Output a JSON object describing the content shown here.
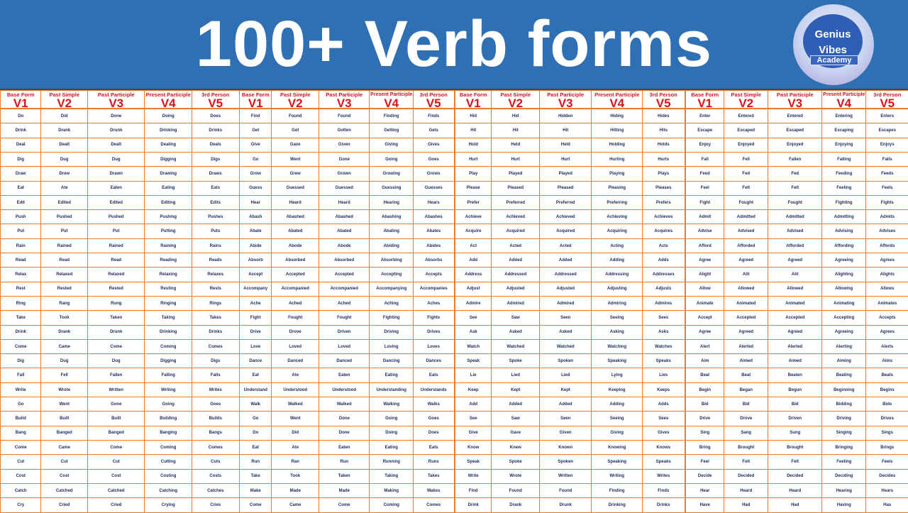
{
  "title": "100+ Verb forms",
  "logo": {
    "line1": "Genius",
    "line2": "Vibes",
    "line3": "Academy"
  },
  "colors": {
    "banner": "#2f6fb3",
    "border": "#ee7d2a",
    "header_text": "#d4161c",
    "cell_text": "#1b2a5c"
  },
  "headers": [
    {
      "label": "Base Form",
      "code": "V1"
    },
    {
      "label": "Past Simple",
      "code": "V2"
    },
    {
      "label": "Past Participle",
      "code": "V3"
    },
    {
      "label": "Present Participle",
      "code": "V4"
    },
    {
      "label": "3rd Person",
      "code": "V5"
    }
  ],
  "tables": [
    {
      "rows": [
        [
          "Do",
          "Did",
          "Done",
          "Doing",
          "Does"
        ],
        [
          "Drink",
          "Drank",
          "Drunk",
          "Drinking",
          "Drinks"
        ],
        [
          "Deal",
          "Dealt",
          "Dealt",
          "Dealing",
          "Deals"
        ],
        [
          "Dig",
          "Dug",
          "Dug",
          "Digging",
          "Digs"
        ],
        [
          "Draw",
          "Drew",
          "Drawn",
          "Drawing",
          "Draws"
        ],
        [
          "Eat",
          "Ate",
          "Eaten",
          "Eating",
          "Eats"
        ],
        [
          "Edit",
          "Edited",
          "Edited",
          "Editing",
          "Edits"
        ],
        [
          "Push",
          "Pushed",
          "Pushed",
          "Pushing",
          "Pushes"
        ],
        [
          "Put",
          "Put",
          "Put",
          "Putting",
          "Puts"
        ],
        [
          "Rain",
          "Rained",
          "Rained",
          "Raining",
          "Rains"
        ],
        [
          "Read",
          "Read",
          "Read",
          "Reading",
          "Reads"
        ],
        [
          "Relax",
          "Relaxed",
          "Relaxed",
          "Relaxing",
          "Relaxes"
        ],
        [
          "Rest",
          "Rested",
          "Rested",
          "Resting",
          "Rests"
        ],
        [
          "Ring",
          "Rang",
          "Rung",
          "Ringing",
          "Rings"
        ],
        [
          "Take",
          "Took",
          "Taken",
          "Taking",
          "Takes"
        ],
        [
          "Drink",
          "Drank",
          "Drunk",
          "Drinking",
          "Drinks"
        ],
        [
          "Come",
          "Came",
          "Come",
          "Coming",
          "Comes"
        ],
        [
          "Dig",
          "Dug",
          "Dug",
          "Digging",
          "Digs"
        ],
        [
          "Fall",
          "Fell",
          "Fallen",
          "Falling",
          "Falls"
        ],
        [
          "Write",
          "Wrote",
          "Written",
          "Writing",
          "Writes"
        ],
        [
          "Go",
          "Went",
          "Gone",
          "Going",
          "Goes"
        ],
        [
          "Build",
          "Built",
          "Built",
          "Building",
          "Builds"
        ],
        [
          "Bang",
          "Banged",
          "Banged",
          "Banging",
          "Bangs"
        ],
        [
          "Come",
          "Came",
          "Come",
          "Coming",
          "Comes"
        ],
        [
          "Cut",
          "Cut",
          "Cut",
          "Cutting",
          "Cuts"
        ],
        [
          "Cost",
          "Cost",
          "Cost",
          "Costing",
          "Costs"
        ],
        [
          "Catch",
          "Catched",
          "Catched",
          "Catching",
          "Catches"
        ],
        [
          "Cry",
          "Cried",
          "Cried",
          "Crying",
          "Cries"
        ]
      ]
    },
    {
      "rows": [
        [
          "Find",
          "Found",
          "Found",
          "Finding",
          "Finds"
        ],
        [
          "Get",
          "Got",
          "Gotten",
          "Getting",
          "Gets"
        ],
        [
          "Give",
          "Gave",
          "Given",
          "Giving",
          "Gives"
        ],
        [
          "Go",
          "Went",
          "Gone",
          "Going",
          "Goes"
        ],
        [
          "Grow",
          "Grew",
          "Grown",
          "Growing",
          "Grows"
        ],
        [
          "Guess",
          "Guessed",
          "Guessed",
          "Guessing",
          "Guesses"
        ],
        [
          "Hear",
          "Heard",
          "Heard",
          "Hearing",
          "Hears"
        ],
        [
          "Abash",
          "Abashed",
          "Abashed",
          "Abashing",
          "Abashes"
        ],
        [
          "Abate",
          "Abated",
          "Abated",
          "Abating",
          "Abates"
        ],
        [
          "Abide",
          "Abode",
          "Abode",
          "Abiding",
          "Abides"
        ],
        [
          "Absorb",
          "Absorbed",
          "Absorbed",
          "Absorbing",
          "Absorbs"
        ],
        [
          "Accept",
          "Accepted",
          "Accepted",
          "Accepting",
          "Accepts"
        ],
        [
          "Accompany",
          "Accompanied",
          "Accompanied",
          "Accompanying",
          "Accompanies"
        ],
        [
          "Ache",
          "Ached",
          "Ached",
          "Aching",
          "Aches"
        ],
        [
          "Fight",
          "Fought",
          "Fought",
          "Fighting",
          "Fights"
        ],
        [
          "Drive",
          "Drove",
          "Driven",
          "Driving",
          "Drives"
        ],
        [
          "Love",
          "Loved",
          "Loved",
          "Loving",
          "Loves"
        ],
        [
          "Dance",
          "Danced",
          "Danced",
          "Dancing",
          "Dances"
        ],
        [
          "Eat",
          "Ate",
          "Eaten",
          "Eating",
          "Eats"
        ],
        [
          "Understand",
          "Understood",
          "Understood",
          "Understanding",
          "Understands"
        ],
        [
          "Walk",
          "Walked",
          "Walked",
          "Walking",
          "Walks"
        ],
        [
          "Go",
          "Went",
          "Gone",
          "Going",
          "Goes"
        ],
        [
          "Do",
          "Did",
          "Done",
          "Doing",
          "Does"
        ],
        [
          "Eat",
          "Ate",
          "Eaten",
          "Eating",
          "Eats"
        ],
        [
          "Run",
          "Ran",
          "Run",
          "Running",
          "Runs"
        ],
        [
          "Take",
          "Took",
          "Taken",
          "Taking",
          "Takes"
        ],
        [
          "Make",
          "Made",
          "Made",
          "Making",
          "Makes"
        ],
        [
          "Come",
          "Came",
          "Come",
          "Coming",
          "Comes"
        ]
      ]
    },
    {
      "rows": [
        [
          "Hid",
          "Hid",
          "Hidden",
          "Hiding",
          "Hides"
        ],
        [
          "Hit",
          "Hit",
          "Hit",
          "Hitting",
          "Hits"
        ],
        [
          "Hold",
          "Held",
          "Held",
          "Holding",
          "Holds"
        ],
        [
          "Hurt",
          "Hurt",
          "Hurt",
          "Hurting",
          "Hurts"
        ],
        [
          "Play",
          "Played",
          "Played",
          "Playing",
          "Plays"
        ],
        [
          "Please",
          "Pleased",
          "Pleased",
          "Pleasing",
          "Pleases"
        ],
        [
          "Prefer",
          "Preferred",
          "Preferred",
          "Preferring",
          "Prefers"
        ],
        [
          "Achieve",
          "Achieved",
          "Achieved",
          "Achieving",
          "Achieves"
        ],
        [
          "Acquire",
          "Acquired",
          "Acquired",
          "Acquiring",
          "Acquires"
        ],
        [
          "Act",
          "Acted",
          "Acted",
          "Acting",
          "Acts"
        ],
        [
          "Add",
          "Added",
          "Added",
          "Adding",
          "Adds"
        ],
        [
          "Address",
          "Addressed",
          "Addressed",
          "Addressing",
          "Addresses"
        ],
        [
          "Adjust",
          "Adjusted",
          "Adjusted",
          "Adjusting",
          "Adjusts"
        ],
        [
          "Admire",
          "Admired",
          "Admired",
          "Admiring",
          "Admires"
        ],
        [
          "See",
          "Saw",
          "Seen",
          "Seeing",
          "Sees"
        ],
        [
          "Ask",
          "Asked",
          "Asked",
          "Asking",
          "Asks"
        ],
        [
          "Watch",
          "Watched",
          "Watched",
          "Watching",
          "Watches"
        ],
        [
          "Speak",
          "Spoke",
          "Spoken",
          "Speaking",
          "Speaks"
        ],
        [
          "Lie",
          "Lied",
          "Lied",
          "Lying",
          "Lies"
        ],
        [
          "Keep",
          "Kept",
          "Kept",
          "Keeping",
          "Keeps"
        ],
        [
          "Add",
          "Added",
          "Added",
          "Adding",
          "Adds"
        ],
        [
          "See",
          "Saw",
          "Seen",
          "Seeing",
          "Sees"
        ],
        [
          "Give",
          "Gave",
          "Given",
          "Giving",
          "Gives"
        ],
        [
          "Know",
          "Knew",
          "Known",
          "Knowing",
          "Knows"
        ],
        [
          "Speak",
          "Spoke",
          "Spoken",
          "Speaking",
          "Speaks"
        ],
        [
          "Write",
          "Wrote",
          "Written",
          "Writing",
          "Writes"
        ],
        [
          "Find",
          "Found",
          "Found",
          "Finding",
          "Finds"
        ],
        [
          "Drink",
          "Drank",
          "Drunk",
          "Drinking",
          "Drinks"
        ]
      ]
    },
    {
      "rows": [
        [
          "Enter",
          "Entered",
          "Entered",
          "Entering",
          "Enters"
        ],
        [
          "Escape",
          "Escaped",
          "Escaped",
          "Escaping",
          "Escapes"
        ],
        [
          "Enjoy",
          "Enjoyed",
          "Enjoyed",
          "Enjoying",
          "Enjoys"
        ],
        [
          "Fall",
          "Fell",
          "Fallen",
          "Falling",
          "Falls"
        ],
        [
          "Feed",
          "Fed",
          "Fed",
          "Feeding",
          "Feeds"
        ],
        [
          "Feel",
          "Felt",
          "Felt",
          "Feeling",
          "Feels"
        ],
        [
          "Fight",
          "Fought",
          "Fought",
          "Fighting",
          "Fights"
        ],
        [
          "Admit",
          "Admitted",
          "Admitted",
          "Admitting",
          "Admits"
        ],
        [
          "Advise",
          "Advised",
          "Advised",
          "Advising",
          "Advises"
        ],
        [
          "Afford",
          "Afforded",
          "Afforded",
          "Affording",
          "Affords"
        ],
        [
          "Agree",
          "Agreed",
          "Agreed",
          "Agreeing",
          "Agrees"
        ],
        [
          "Alight",
          "Alit",
          "Alit",
          "Alighting",
          "Alights"
        ],
        [
          "Allow",
          "Allowed",
          "Allowed",
          "Allowing",
          "Allows"
        ],
        [
          "Animate",
          "Animated",
          "Animated",
          "Animating",
          "Animates"
        ],
        [
          "Accept",
          "Accepted",
          "Accepted",
          "Accepting",
          "Accepts"
        ],
        [
          "Agree",
          "Agreed",
          "Agreed",
          "Agreeing",
          "Agrees"
        ],
        [
          "Alert",
          "Alerted",
          "Alerted",
          "Alerting",
          "Alerts"
        ],
        [
          "Aim",
          "Aimed",
          "Aimed",
          "Aiming",
          "Aims"
        ],
        [
          "Beat",
          "Beat",
          "Beaten",
          "Beating",
          "Beats"
        ],
        [
          "Begin",
          "Began",
          "Begun",
          "Beginning",
          "Begins"
        ],
        [
          "Bid",
          "Bid",
          "Bid",
          "Bidding",
          "Bids"
        ],
        [
          "Drive",
          "Drove",
          "Driven",
          "Driving",
          "Drives"
        ],
        [
          "Sing",
          "Sang",
          "Sung",
          "Singing",
          "Sings"
        ],
        [
          "Bring",
          "Brought",
          "Brought",
          "Bringing",
          "Brings"
        ],
        [
          "Feel",
          "Felt",
          "Felt",
          "Feeling",
          "Feels"
        ],
        [
          "Decide",
          "Decided",
          "Decided",
          "Deciding",
          "Decides"
        ],
        [
          "Hear",
          "Heard",
          "Heard",
          "Hearing",
          "Hears"
        ],
        [
          "Have",
          "Had",
          "Had",
          "Having",
          "Has"
        ]
      ]
    }
  ]
}
